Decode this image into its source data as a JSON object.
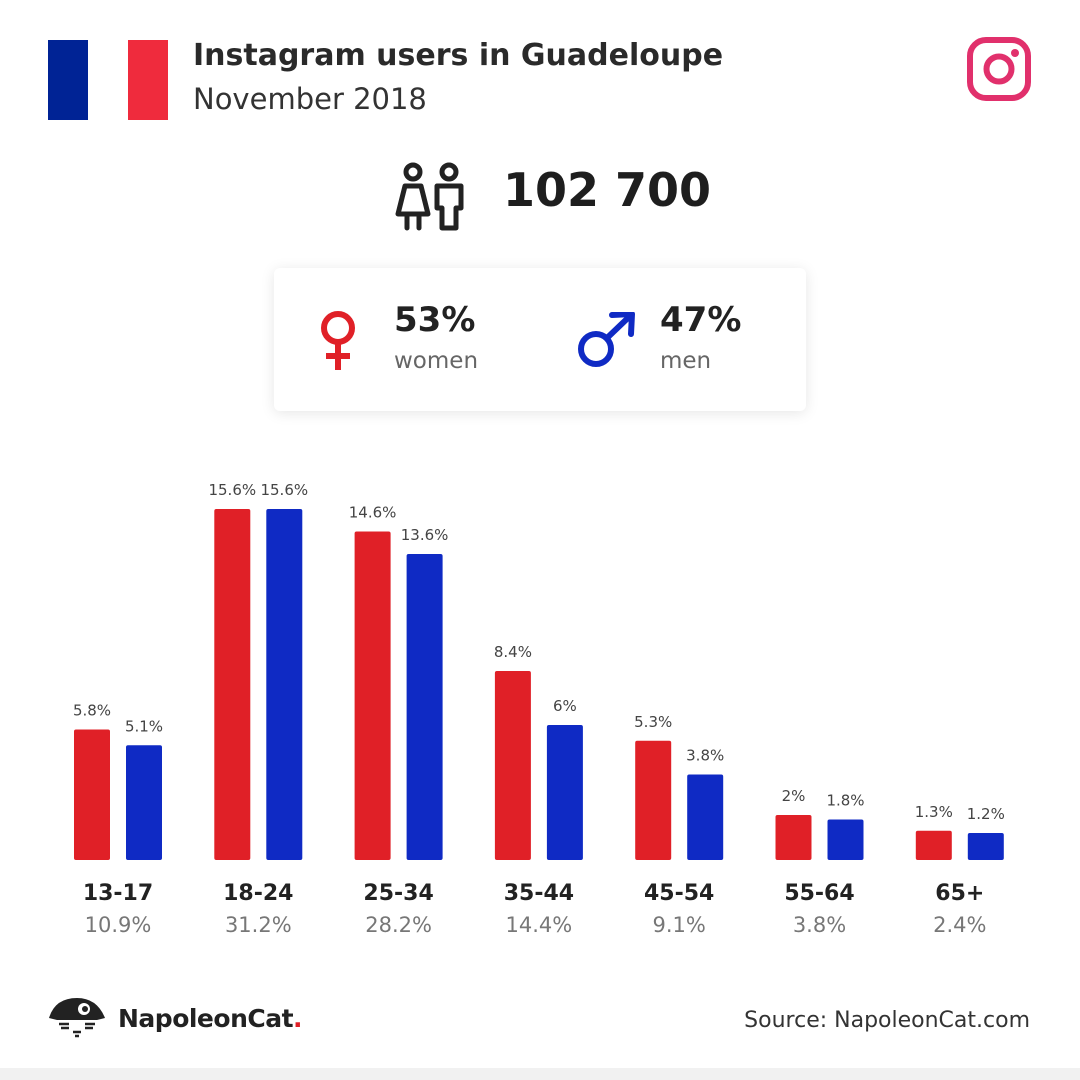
{
  "header": {
    "title": "Instagram users in Guadeloupe",
    "subtitle": "November 2018"
  },
  "flag_colors": [
    "#002395",
    "#ffffff",
    "#ef2b3d"
  ],
  "icons": {
    "instagram": "instagram-logo-icon",
    "users": "people-icon",
    "female": "female-symbol-icon",
    "male": "male-symbol-icon"
  },
  "total_users": "102 700",
  "gender": {
    "women_pct": "53%",
    "women_label": "women",
    "men_pct": "47%",
    "men_label": "men"
  },
  "chart_data": {
    "type": "bar",
    "categories": [
      "13-17",
      "18-24",
      "25-34",
      "35-44",
      "45-54",
      "55-64",
      "65+"
    ],
    "category_totals": [
      "10.9%",
      "31.2%",
      "28.2%",
      "14.4%",
      "9.1%",
      "3.8%",
      "2.4%"
    ],
    "series": [
      {
        "color": "#e02027",
        "values": [
          5.8,
          15.6,
          14.6,
          8.4,
          5.3,
          2,
          1.3
        ],
        "labels": [
          "5.8%",
          "15.6%",
          "14.6%",
          "8.4%",
          "5.3%",
          "2%",
          "1.3%"
        ]
      },
      {
        "color": "#0f2ac4",
        "values": [
          5.1,
          15.6,
          13.6,
          6,
          3.8,
          1.8,
          1.2
        ],
        "labels": [
          "5.1%",
          "15.6%",
          "13.6%",
          "6%",
          "3.8%",
          "1.8%",
          "1.2%"
        ]
      }
    ],
    "ylim": [
      0,
      15.6
    ],
    "grid": false,
    "legend": "none"
  },
  "footer": {
    "brand": "NapoleonCat",
    "brand_dot": ".",
    "source": "Source: NapoleonCat.com"
  },
  "colors": {
    "female": "#e02027",
    "male": "#0f2ac4",
    "instagram": "#e1306c"
  }
}
